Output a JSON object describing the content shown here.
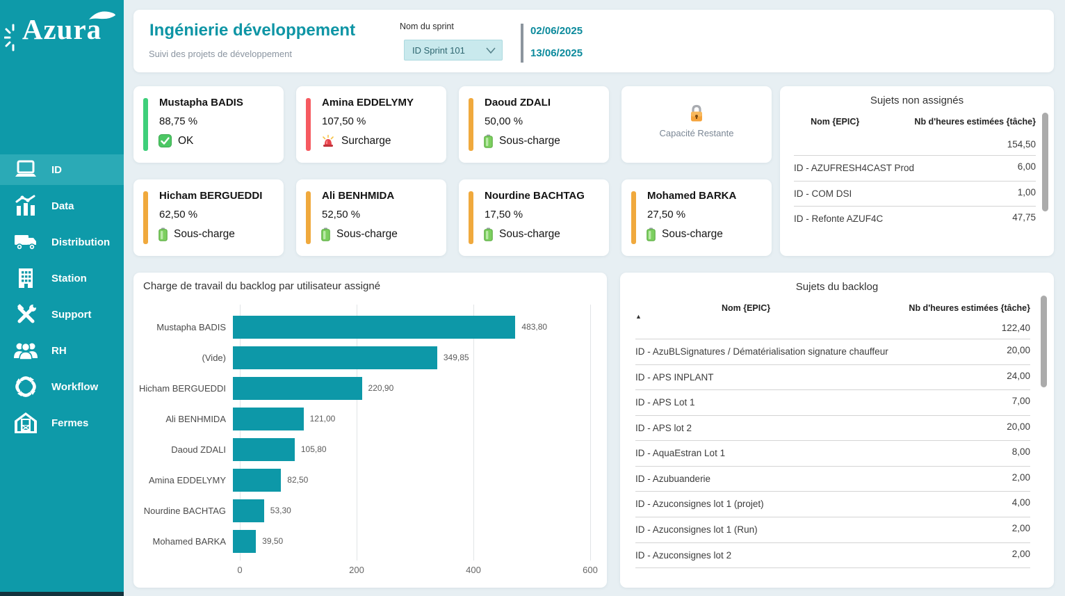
{
  "brand": {
    "logo_text": "Azura",
    "sidebar_color": "#0E9AA9",
    "active_item_color": "#2BAAB6",
    "teal_text_color": "#0E95A5"
  },
  "sidebar": {
    "items": [
      {
        "label": "ID",
        "icon": "laptop-icon",
        "active": true
      },
      {
        "label": "Data",
        "icon": "bar-chart-icon",
        "active": false
      },
      {
        "label": "Distribution",
        "icon": "truck-icon",
        "active": false
      },
      {
        "label": "Station",
        "icon": "building-icon",
        "active": false
      },
      {
        "label": "Support",
        "icon": "tools-icon",
        "active": false
      },
      {
        "label": "RH",
        "icon": "people-icon",
        "active": false
      },
      {
        "label": "Workflow",
        "icon": "cycle-arrows-icon",
        "active": false
      },
      {
        "label": "Fermes",
        "icon": "barn-icon",
        "active": false
      }
    ]
  },
  "header": {
    "title": "Ingénierie développement",
    "subtitle": "Suivi des projets de développement",
    "sprint_label": "Nom du sprint",
    "sprint_value": "ID Sprint 101",
    "date_start": "02/06/2025",
    "date_end": "13/06/2025"
  },
  "kpi_cards": [
    {
      "name": "Mustapha BADIS",
      "value": "88,75 %",
      "status": "OK",
      "status_icon": "check-icon",
      "accent": "#3ECF7A"
    },
    {
      "name": "Amina EDDELYMY",
      "value": "107,50 %",
      "status": "Surcharge",
      "status_icon": "siren-icon",
      "accent": "#F65A60"
    },
    {
      "name": "Daoud ZDALI",
      "value": "50,00 %",
      "status": "Sous-charge",
      "status_icon": "battery-icon",
      "accent": "#F0A93D"
    },
    {
      "name": "Hicham BERGUEDDI",
      "value": "62,50 %",
      "status": "Sous-charge",
      "status_icon": "battery-icon",
      "accent": "#F0A93D"
    },
    {
      "name": "Ali BENHMIDA",
      "value": "52,50 %",
      "status": "Sous-charge",
      "status_icon": "battery-icon",
      "accent": "#F0A93D"
    },
    {
      "name": "Nourdine BACHTAG",
      "value": "17,50 %",
      "status": "Sous-charge",
      "status_icon": "battery-icon",
      "accent": "#F0A93D"
    },
    {
      "name": "Mohamed BARKA",
      "value": "27,50 %",
      "status": "Sous-charge",
      "status_icon": "battery-icon",
      "accent": "#F0A93D"
    }
  ],
  "capacity_card": {
    "label": "Capacité Restante",
    "icon": "lock-icon"
  },
  "unassigned_table": {
    "title": "Sujets non assignés",
    "col_name": "Nom {EPIC}",
    "col_hours": "Nb d'heures estimées {tâche}",
    "total": "154,50",
    "rows": [
      {
        "name": "ID - AZUFRESH4CAST Prod",
        "hours": "6,00"
      },
      {
        "name": "ID - COM DSI",
        "hours": "1,00"
      },
      {
        "name": "ID - Refonte AZUF4C",
        "hours": "47,75"
      }
    ]
  },
  "backlog_table": {
    "title": "Sujets du backlog",
    "col_name": "Nom {EPIC}",
    "col_hours": "Nb d'heures estimées {tâche}",
    "sort_caret": "▲",
    "total": "122,40",
    "rows": [
      {
        "name": "ID - AzuBLSignatures / Dématérialisation signature chauffeur",
        "hours": "20,00"
      },
      {
        "name": "ID - APS INPLANT",
        "hours": "24,00"
      },
      {
        "name": "ID - APS Lot 1",
        "hours": "7,00"
      },
      {
        "name": "ID - APS lot 2",
        "hours": "20,00"
      },
      {
        "name": "ID - AquaEstran Lot 1",
        "hours": "8,00"
      },
      {
        "name": "ID - Azubuanderie",
        "hours": "2,00"
      },
      {
        "name": "ID - Azuconsignes lot 1 (projet)",
        "hours": "4,00"
      },
      {
        "name": "ID - Azuconsignes lot 1 (Run)",
        "hours": "2,00"
      },
      {
        "name": "ID - Azuconsignes lot 2",
        "hours": "2,00"
      }
    ]
  },
  "chart_data": {
    "type": "bar",
    "orientation": "horizontal",
    "title": "Charge de travail du backlog par utilisateur assigné",
    "categories": [
      "Mustapha BADIS",
      "(Vide)",
      "Hicham BERGUEDDI",
      "Ali BENHMIDA",
      "Daoud ZDALI",
      "Amina EDDELYMY",
      "Nourdine BACHTAG",
      "Mohamed BARKA"
    ],
    "values": [
      483.8,
      349.85,
      220.9,
      121.0,
      105.8,
      82.5,
      53.3,
      39.5
    ],
    "value_labels": [
      "483,80",
      "349,85",
      "220,90",
      "121,00",
      "105,80",
      "82,50",
      "53,30",
      "39,50"
    ],
    "xlabel": "",
    "ylabel": "",
    "xlim": [
      0,
      600
    ],
    "x_ticks": [
      0,
      200,
      400,
      600
    ],
    "grid": true,
    "legend": false,
    "bar_color": "#0D98A8"
  }
}
